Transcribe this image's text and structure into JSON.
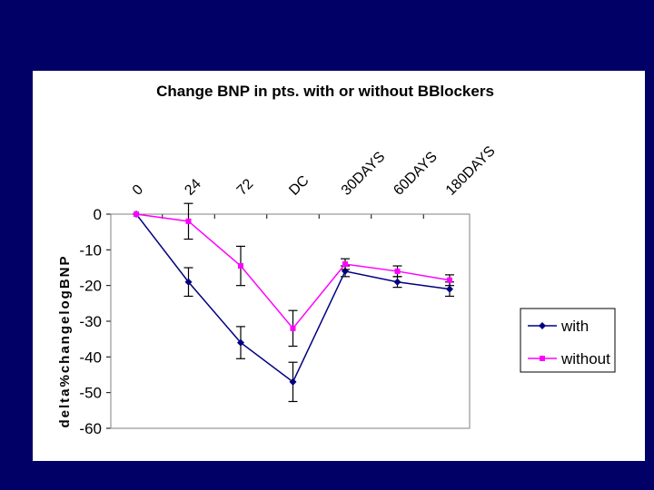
{
  "chart_data": {
    "type": "line",
    "title": "Change BNP in pts. with or without BBlockers",
    "xlabel": "",
    "ylabel": "delta%changelogBNP",
    "categories": [
      "0",
      "24",
      "72",
      "DC",
      "30DAYS",
      "60DAYS",
      "180DAYS"
    ],
    "ylim": [
      -60,
      0
    ],
    "yticks": [
      0,
      -10,
      -20,
      -30,
      -40,
      -50,
      -60
    ],
    "grid": false,
    "legend_position": "right",
    "series": [
      {
        "name": "with",
        "color": "#000080",
        "marker": "diamond",
        "values": [
          0,
          -19,
          -36,
          -47,
          -16,
          -19,
          -21
        ],
        "error": [
          0,
          4,
          4.5,
          5.5,
          1.5,
          1.5,
          2
        ]
      },
      {
        "name": "without",
        "color": "#ff00ff",
        "marker": "square",
        "values": [
          0,
          -2,
          -14.5,
          -32,
          -14,
          -16,
          -18.5
        ],
        "error": [
          0,
          5,
          5.5,
          5,
          1.5,
          1.5,
          1.5
        ]
      }
    ]
  }
}
